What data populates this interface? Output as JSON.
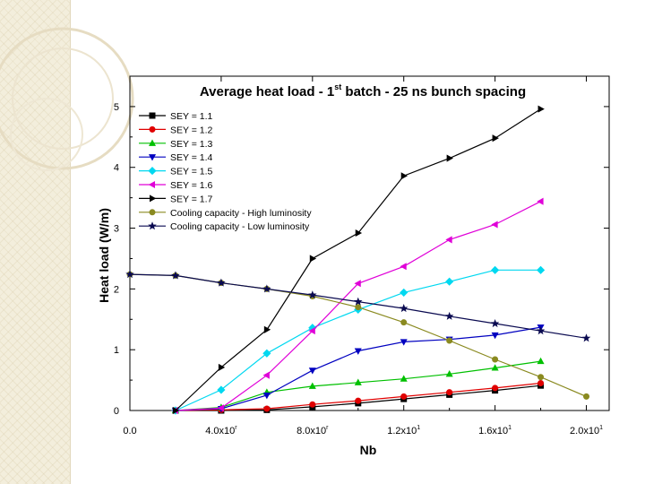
{
  "chart_data": {
    "type": "line",
    "title": "Average heat load - 1st batch - 25 ns bunch spacing",
    "title_parts": {
      "before": "Average heat load - 1",
      "sup": "st",
      "after": " batch - 25 ns bunch spacing"
    },
    "xlabel": "Nb",
    "ylabel": "Heat load (W/m)",
    "xlim": [
      0,
      210000000000.0
    ],
    "ylim": [
      0,
      5.5
    ],
    "x_ticks": [
      {
        "value": 0,
        "label": "0.0"
      },
      {
        "value": 40000000000.0,
        "label": "4.0x10",
        "exp": "r"
      },
      {
        "value": 80000000000.0,
        "label": "8.0x10",
        "exp": "r"
      },
      {
        "value": 120000000000.0,
        "label": "1.2x10",
        "exp": "1"
      },
      {
        "value": 160000000000.0,
        "label": "1.6x10",
        "exp": "1"
      },
      {
        "value": 200000000000.0,
        "label": "2.0x10",
        "exp": "1"
      }
    ],
    "y_ticks": [
      {
        "value": 0,
        "label": "0"
      },
      {
        "value": 1,
        "label": "1"
      },
      {
        "value": 2,
        "label": "2"
      },
      {
        "value": 3,
        "label": "3"
      },
      {
        "value": 4,
        "label": "4"
      },
      {
        "value": 5,
        "label": "5"
      }
    ],
    "grid": false,
    "legend_position": "top-left",
    "series": [
      {
        "name": "SEY = 1.1",
        "color": "#000000",
        "marker": "square",
        "x": [
          20000000000.0,
          40000000000.0,
          60000000000.0,
          80000000000.0,
          100000000000.0,
          120000000000.0,
          140000000000.0,
          160000000000.0,
          180000000000.0
        ],
        "y": [
          0.0,
          0.0,
          0.01,
          0.06,
          0.12,
          0.19,
          0.26,
          0.33,
          0.41
        ]
      },
      {
        "name": "SEY = 1.2",
        "color": "#e00000",
        "marker": "circle",
        "x": [
          20000000000.0,
          40000000000.0,
          60000000000.0,
          80000000000.0,
          100000000000.0,
          120000000000.0,
          140000000000.0,
          160000000000.0,
          180000000000.0
        ],
        "y": [
          0.0,
          0.01,
          0.03,
          0.1,
          0.16,
          0.23,
          0.3,
          0.37,
          0.45
        ]
      },
      {
        "name": "SEY = 1.3",
        "color": "#00c000",
        "marker": "triangle-up",
        "x": [
          20000000000.0,
          40000000000.0,
          60000000000.0,
          80000000000.0,
          100000000000.0,
          120000000000.0,
          140000000000.0,
          160000000000.0,
          180000000000.0
        ],
        "y": [
          0.0,
          0.05,
          0.3,
          0.4,
          0.46,
          0.52,
          0.6,
          0.7,
          0.81
        ]
      },
      {
        "name": "SEY = 1.4",
        "color": "#0000c0",
        "marker": "triangle-down",
        "x": [
          20000000000.0,
          40000000000.0,
          60000000000.0,
          80000000000.0,
          100000000000.0,
          120000000000.0,
          140000000000.0,
          160000000000.0,
          180000000000.0
        ],
        "y": [
          0.0,
          0.03,
          0.25,
          0.66,
          0.98,
          1.13,
          1.17,
          1.24,
          1.37
        ]
      },
      {
        "name": "SEY = 1.5",
        "color": "#00d8f0",
        "marker": "diamond",
        "x": [
          20000000000.0,
          40000000000.0,
          60000000000.0,
          80000000000.0,
          100000000000.0,
          120000000000.0,
          140000000000.0,
          160000000000.0,
          180000000000.0
        ],
        "y": [
          0.0,
          0.34,
          0.94,
          1.36,
          1.66,
          1.94,
          2.12,
          2.31,
          2.31
        ]
      },
      {
        "name": "SEY = 1.6",
        "color": "#e000d8",
        "marker": "triangle-left",
        "x": [
          20000000000.0,
          40000000000.0,
          60000000000.0,
          80000000000.0,
          100000000000.0,
          120000000000.0,
          140000000000.0,
          160000000000.0,
          180000000000.0
        ],
        "y": [
          0.0,
          0.04,
          0.58,
          1.31,
          2.09,
          2.37,
          2.81,
          3.06,
          3.44
        ]
      },
      {
        "name": "SEY = 1.7",
        "color": "#000000",
        "marker": "triangle-right",
        "x": [
          20000000000.0,
          40000000000.0,
          60000000000.0,
          80000000000.0,
          100000000000.0,
          120000000000.0,
          140000000000.0,
          160000000000.0,
          180000000000.0
        ],
        "y": [
          0.0,
          0.71,
          1.33,
          2.5,
          2.92,
          3.86,
          4.15,
          4.48,
          4.96
        ]
      },
      {
        "name": "Cooling capacity - High luminosity",
        "color": "#8a8a20",
        "marker": "circle",
        "x": [
          0.0,
          20000000000.0,
          40000000000.0,
          60000000000.0,
          80000000000.0,
          100000000000.0,
          120000000000.0,
          140000000000.0,
          160000000000.0,
          180000000000.0,
          200000000000.0
        ],
        "y": [
          2.24,
          2.22,
          2.1,
          2.0,
          1.88,
          1.7,
          1.45,
          1.15,
          0.84,
          0.55,
          0.23
        ]
      },
      {
        "name": "Cooling capacity  - Low luminosity",
        "color": "#0a0a50",
        "marker": "star",
        "x": [
          0.0,
          20000000000.0,
          40000000000.0,
          60000000000.0,
          80000000000.0,
          100000000000.0,
          120000000000.0,
          140000000000.0,
          160000000000.0,
          180000000000.0,
          200000000000.0
        ],
        "y": [
          2.24,
          2.22,
          2.1,
          2.0,
          1.9,
          1.79,
          1.68,
          1.55,
          1.43,
          1.31,
          1.19
        ]
      }
    ]
  }
}
